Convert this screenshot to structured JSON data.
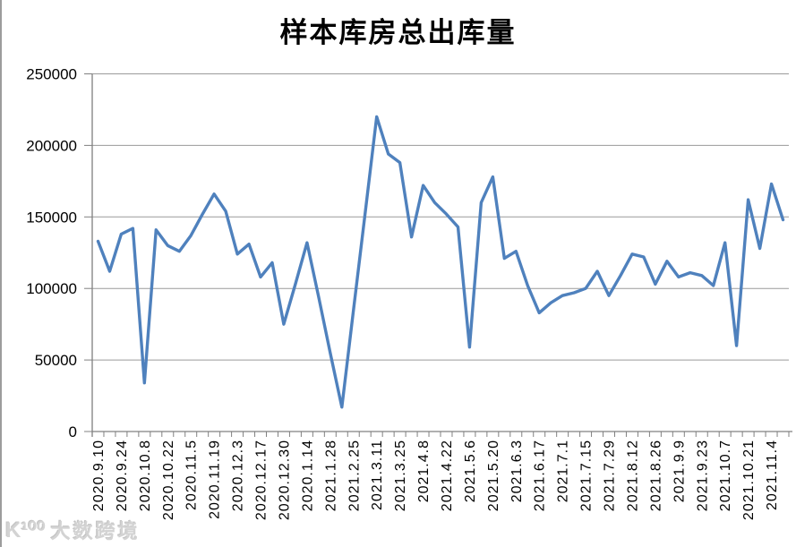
{
  "title": "样本库房总出库量",
  "watermark": {
    "logo": "K¹⁰⁰",
    "brand": "大数跨境"
  },
  "chart_data": {
    "type": "line",
    "title": "样本库房总出库量",
    "xlabel": "",
    "ylabel": "",
    "ylim": [
      0,
      250000
    ],
    "yticks": [
      0,
      50000,
      100000,
      150000,
      200000,
      250000
    ],
    "grid": "horizontal",
    "legend": "none",
    "series_name": "样本库房总出库量",
    "line_color": "#4F81BD",
    "grid_color": "#9a9a9a",
    "axis_color": "#808080",
    "label_every": 2,
    "x_labels": [
      "2020.9.10",
      "2020.9.24",
      "2020.10.8",
      "2020.10.22",
      "2020.11.5",
      "2020.11.19",
      "2020.12.3",
      "2020.12.17",
      "2020.12.30",
      "2020.1.14",
      "2021.1.28",
      "2021.2.25",
      "2021.3.11",
      "2021.3.25",
      "2021.4.8",
      "2021.4.22",
      "2021.5.6",
      "2021.5.20",
      "2021.6.3",
      "2021.6.17",
      "2021.7.1",
      "2021.7.15",
      "2021.7.29",
      "2021.8.12",
      "2021.8.26",
      "2021.9.9",
      "2021.9.23",
      "2021.10.7",
      "2021.10.21",
      "2021.11.4"
    ],
    "values": [
      133000,
      112000,
      138000,
      142000,
      34000,
      141000,
      130000,
      126000,
      137000,
      152000,
      166000,
      154000,
      124000,
      131000,
      108000,
      118000,
      75000,
      103000,
      132000,
      94000,
      55000,
      17000,
      85000,
      152000,
      220000,
      194000,
      188000,
      136000,
      172000,
      160000,
      152000,
      143000,
      59000,
      160000,
      178000,
      121000,
      126000,
      102000,
      83000,
      90000,
      95000,
      97000,
      100000,
      112000,
      95000,
      109000,
      124000,
      122000,
      103000,
      119000,
      108000,
      111000,
      109000,
      102000,
      132000,
      60000,
      162000,
      128000,
      173000,
      148000
    ]
  }
}
